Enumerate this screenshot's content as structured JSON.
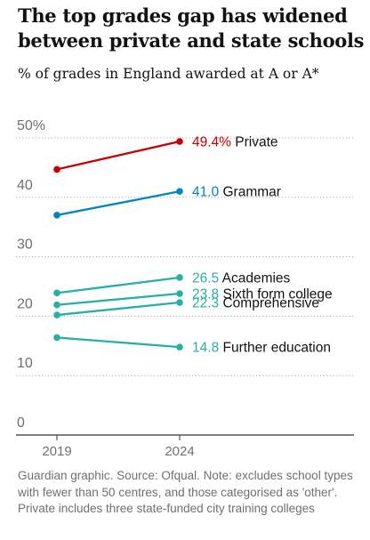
{
  "title": "The top grades gap has widened between private and state schools",
  "subtitle": "% of grades in England awarded at A or A*",
  "footer": "Guardian graphic. Source: Ofqual. Note: excludes school types with fewer than 50 centres, and those categorised as 'other'. Private includes three state-funded city training colleges",
  "chart_data": {
    "type": "line",
    "title": "The top grades gap has widened between private and state schools",
    "subtitle": "% of grades in England awarded at A or A*",
    "x": [
      2019,
      2024
    ],
    "x_tick_labels": [
      "2019",
      "2024"
    ],
    "ylim": [
      0,
      50
    ],
    "y_ticks": [
      0,
      10,
      20,
      30,
      40,
      50
    ],
    "y_tick_labels": [
      "0",
      "10",
      "20",
      "30",
      "40",
      "50%"
    ],
    "grid": true,
    "series": [
      {
        "name": "Private",
        "values": [
          44.7,
          49.4
        ],
        "label": "49.4%",
        "color": "#c70000"
      },
      {
        "name": "Grammar",
        "values": [
          37.0,
          41.0
        ],
        "label": "41.0",
        "color": "#0084c6"
      },
      {
        "name": "Academies",
        "values": [
          23.9,
          26.5
        ],
        "label": "26.5",
        "color": "#27b0a4"
      },
      {
        "name": "Sixth form college",
        "values": [
          21.9,
          23.8
        ],
        "label": "23.8",
        "color": "#27b0a4"
      },
      {
        "name": "Comprehensive",
        "values": [
          20.2,
          22.3
        ],
        "label": "22.3",
        "color": "#27b0a4"
      },
      {
        "name": "Further education",
        "values": [
          16.4,
          14.8
        ],
        "label": "14.8",
        "color": "#27b0a4"
      }
    ]
  }
}
